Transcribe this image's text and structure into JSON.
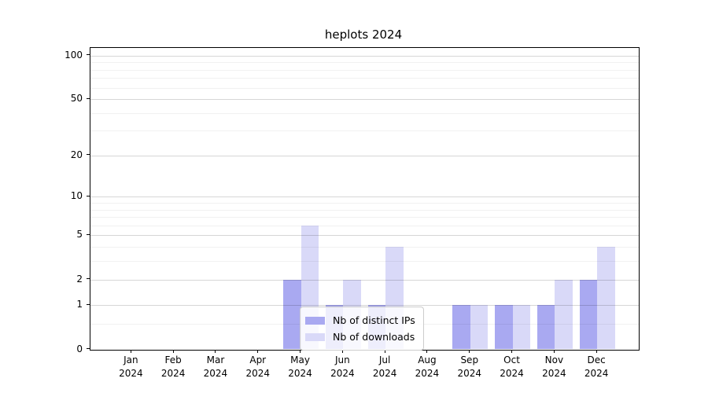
{
  "chart_data": {
    "type": "bar",
    "title": "heplots 2024",
    "x_months": [
      "Jan",
      "Feb",
      "Mar",
      "Apr",
      "May",
      "Jun",
      "Jul",
      "Aug",
      "Sep",
      "Oct",
      "Nov",
      "Dec"
    ],
    "x_year": "2024",
    "series": [
      {
        "name": "Nb of distinct IPs",
        "color": "#a9a9f1",
        "values": [
          0,
          0,
          0,
          0,
          2,
          1,
          1,
          0,
          1,
          1,
          1,
          2
        ]
      },
      {
        "name": "Nb of downloads",
        "color": "#d9d9f8",
        "values": [
          0,
          0,
          0,
          0,
          6,
          2,
          4,
          0,
          1,
          1,
          2,
          4
        ]
      }
    ],
    "yscale": "log1p",
    "ylim": [
      0,
      113
    ],
    "yticks": [
      0,
      1,
      2,
      5,
      10,
      20,
      50,
      100
    ],
    "minor_yticks": [
      0.5,
      3,
      4,
      6,
      7,
      8,
      9,
      30,
      40,
      60,
      70,
      80,
      90
    ],
    "grid": "horizontal",
    "legend_position": "bottom-center"
  }
}
